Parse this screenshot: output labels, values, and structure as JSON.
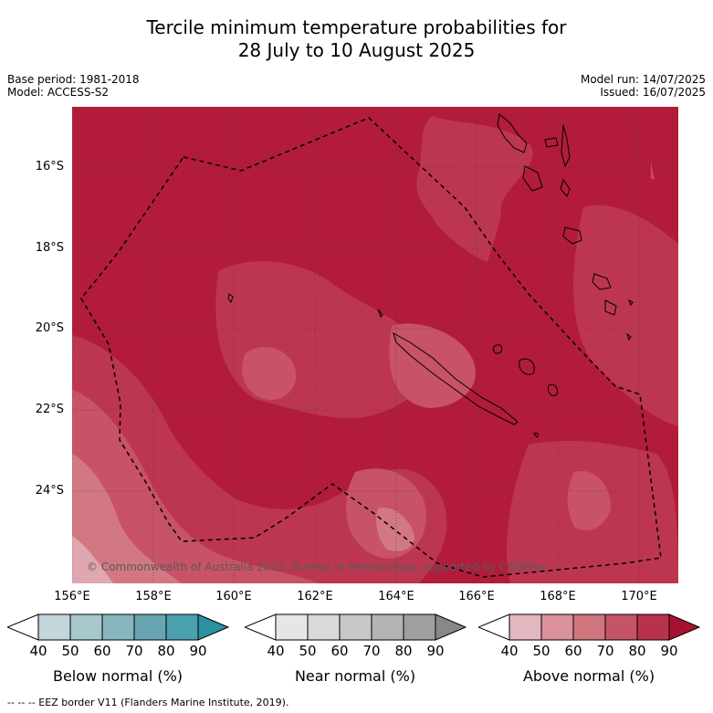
{
  "title": {
    "line1": "Tercile minimum temperature probabilities for",
    "line2": "28 July to 10 August 2025"
  },
  "meta": {
    "base_period": "Base period: 1981-2018",
    "model": "Model: ACCESS-S2",
    "model_run": "Model run: 14/07/2025",
    "issued": "Issued: 16/07/2025"
  },
  "map": {
    "lat_labels": [
      "16°S",
      "18°S",
      "20°S",
      "22°S",
      "24°S"
    ],
    "lon_labels": [
      "156°E",
      "158°E",
      "160°E",
      "162°E",
      "164°E",
      "166°E",
      "168°E",
      "170°E"
    ],
    "copyright": "© Commonwealth of Australia 2025, Bureau of Meteorology, supported by COSPPac",
    "background_color": "#b21c3a",
    "border_style": "dashed"
  },
  "colorbars": [
    {
      "label": "Below normal (%)",
      "ticks": [
        "40",
        "50",
        "60",
        "70",
        "80",
        "90"
      ],
      "colors": [
        "#ffffff",
        "#c2d6db",
        "#a6c8cd",
        "#88b6bf",
        "#68a5b1",
        "#4aa0ae",
        "#2a91a2"
      ]
    },
    {
      "label": "Near normal (%)",
      "ticks": [
        "40",
        "50",
        "60",
        "70",
        "80",
        "90"
      ],
      "colors": [
        "#ffffff",
        "#e6e6e6",
        "#d9d9d9",
        "#c8c8c8",
        "#b4b4b4",
        "#9f9f9f",
        "#888888"
      ]
    },
    {
      "label": "Above normal (%)",
      "ticks": [
        "40",
        "50",
        "60",
        "70",
        "80",
        "90"
      ],
      "colors": [
        "#ffffff",
        "#e2b7bf",
        "#da919b",
        "#cf767e",
        "#c55566",
        "#b8324b",
        "#a71232"
      ]
    }
  ],
  "footnote": "--  --  -- EEZ border V11 (Flanders Marine Institute, 2019)."
}
